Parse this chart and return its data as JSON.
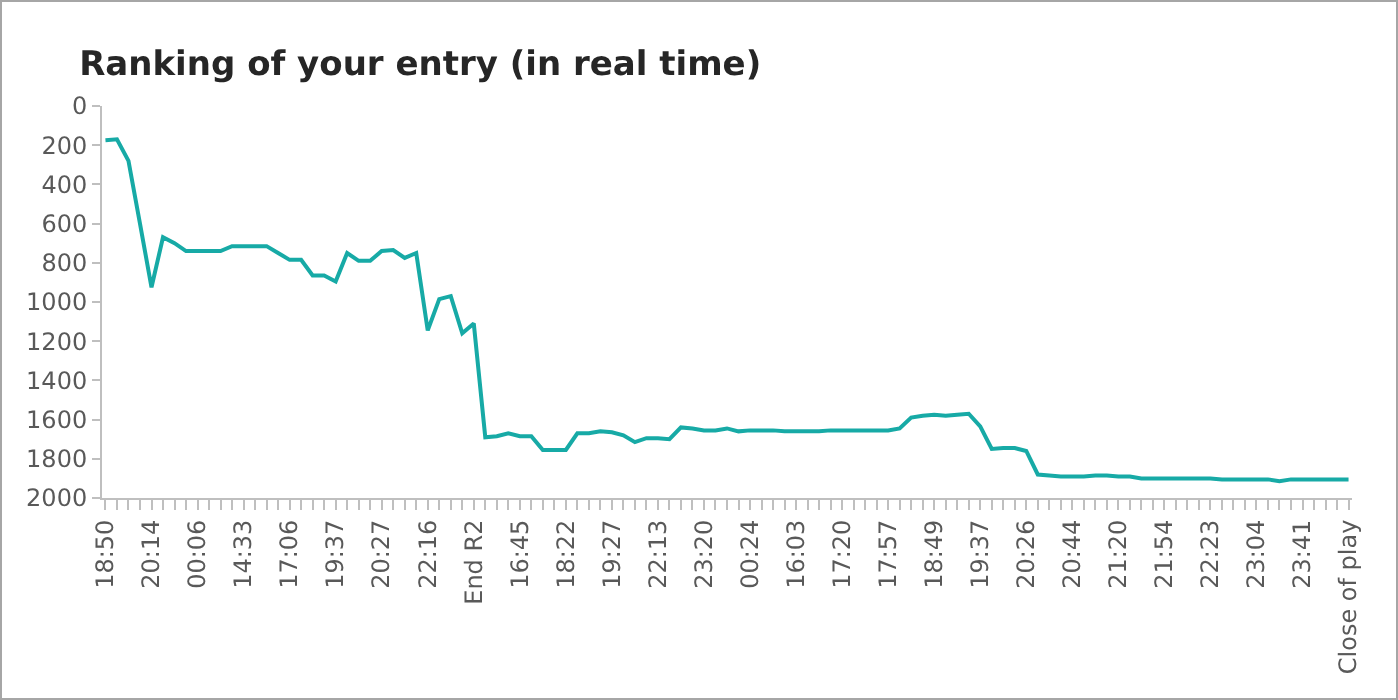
{
  "chart_data": {
    "type": "line",
    "title": "Ranking of your entry (in real time)",
    "categories": [
      "18:50",
      null,
      null,
      null,
      "20:14",
      null,
      null,
      null,
      "00:06",
      null,
      null,
      null,
      "14:33",
      null,
      null,
      null,
      "17:06",
      null,
      null,
      null,
      "19:37",
      null,
      null,
      null,
      "20:27",
      null,
      null,
      null,
      "22:16",
      null,
      null,
      null,
      "End R2",
      null,
      null,
      null,
      "16:45",
      null,
      null,
      null,
      "18:22",
      null,
      null,
      null,
      "19:27",
      null,
      null,
      null,
      "22:13",
      null,
      null,
      null,
      "23:20",
      null,
      null,
      null,
      "00:24",
      null,
      null,
      null,
      "16:03",
      null,
      null,
      null,
      "17:20",
      null,
      null,
      null,
      "17:57",
      null,
      null,
      null,
      "18:49",
      null,
      null,
      null,
      "19:37",
      null,
      null,
      null,
      "20:26",
      null,
      null,
      null,
      "20:44",
      null,
      null,
      null,
      "21:20",
      null,
      null,
      null,
      "21:54",
      null,
      null,
      null,
      "22:23",
      null,
      null,
      null,
      "23:04",
      null,
      null,
      null,
      "23:41",
      null,
      null,
      null,
      "Close of play"
    ],
    "series": [
      {
        "color": "#17aaa6",
        "values": [
          175,
          170,
          280,
          600,
          925,
          670,
          700,
          740,
          740,
          740,
          740,
          715,
          715,
          715,
          715,
          750,
          785,
          785,
          865,
          865,
          895,
          750,
          790,
          790,
          740,
          735,
          775,
          750,
          1145,
          985,
          970,
          1160,
          1110,
          1690,
          1685,
          1670,
          1685,
          1685,
          1755,
          1755,
          1755,
          1670,
          1670,
          1660,
          1665,
          1680,
          1715,
          1695,
          1695,
          1700,
          1640,
          1645,
          1655,
          1655,
          1645,
          1660,
          1655,
          1655,
          1655,
          1660,
          1660,
          1660,
          1660,
          1655,
          1655,
          1655,
          1655,
          1655,
          1655,
          1645,
          1590,
          1580,
          1575,
          1580,
          1575,
          1570,
          1635,
          1750,
          1745,
          1745,
          1760,
          1880,
          1885,
          1890,
          1890,
          1890,
          1885,
          1885,
          1890,
          1890,
          1900,
          1900,
          1900,
          1900,
          1900,
          1900,
          1900,
          1905,
          1905,
          1905,
          1905,
          1905,
          1915,
          1905,
          1905,
          1905,
          1905,
          1905,
          1905
        ]
      }
    ],
    "ylim": [
      2000,
      0
    ],
    "yticks": [
      0,
      200,
      400,
      600,
      800,
      1000,
      1200,
      1400,
      1600,
      1800,
      2000
    ],
    "grid": false,
    "marker": "none",
    "line_style": "solid"
  }
}
